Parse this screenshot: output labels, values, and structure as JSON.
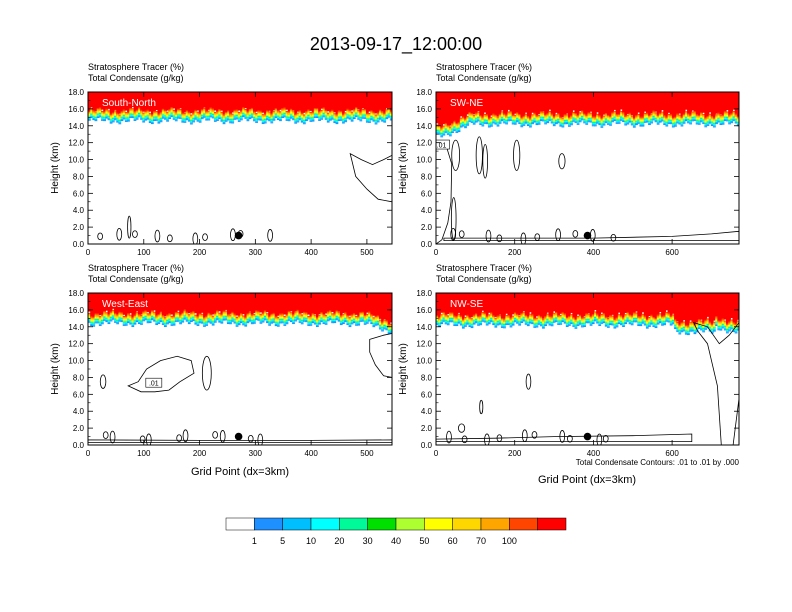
{
  "figure": {
    "title": "2013-09-17_12:00:00",
    "footnote": "Total Condensate Contours: .01 to .01 by .000",
    "xlabel": "Grid Point (dx=3km)",
    "ylabel": "Height (km)",
    "subtitle_line1": "Stratosphere Tracer   (%)",
    "subtitle_line2": "Total Condensate   (g/kg)"
  },
  "colorbar": {
    "colors": [
      "#ffffff",
      "#1e90ff",
      "#00bfff",
      "#00ffff",
      "#00fa9a",
      "#00e000",
      "#adff2f",
      "#ffff00",
      "#ffd700",
      "#ffa500",
      "#ff4500",
      "#ff0000"
    ],
    "labels": [
      "1",
      "5",
      "10",
      "20",
      "30",
      "40",
      "50",
      "60",
      "70",
      "100"
    ]
  },
  "chart_data": [
    {
      "type": "heatmap",
      "label": "South-North",
      "subtitle": "Stratosphere Tracer (%) / Total Condensate (g/kg)",
      "xlim": [
        0,
        545
      ],
      "ylim": [
        0,
        18
      ],
      "xticks": [
        "0",
        "100",
        "200",
        "300",
        "400",
        "500"
      ],
      "yticks": [
        "0.0",
        "2.0",
        "4.0",
        "6.0",
        "8.0",
        "10.0",
        "12.0",
        "14.0",
        "16.0",
        "18.0"
      ],
      "marker_x": 270,
      "tropopause_km": 15.2,
      "contour_label": ""
    },
    {
      "type": "heatmap",
      "label": "SW-NE",
      "subtitle": "Stratosphere Tracer (%) / Total Condensate (g/kg)",
      "xlim": [
        0,
        770
      ],
      "ylim": [
        0,
        18
      ],
      "xticks": [
        "0",
        "200",
        "400",
        "600"
      ],
      "yticks": [
        "0.0",
        "2.0",
        "4.0",
        "6.0",
        "8.0",
        "10.0",
        "12.0",
        "14.0",
        "16.0",
        "18.0"
      ],
      "marker_x": 385,
      "tropopause_km": 14.8,
      "contour_label": ".01"
    },
    {
      "type": "heatmap",
      "label": "West-East",
      "subtitle": "Stratosphere Tracer (%) / Total Condensate (g/kg)",
      "xlim": [
        0,
        545
      ],
      "ylim": [
        0,
        18
      ],
      "xticks": [
        "0",
        "100",
        "200",
        "300",
        "400",
        "500"
      ],
      "yticks": [
        "0.0",
        "2.0",
        "4.0",
        "6.0",
        "8.0",
        "10.0",
        "12.0",
        "14.0",
        "16.0",
        "18.0"
      ],
      "marker_x": 270,
      "tropopause_km": 15.0,
      "contour_label": ".01"
    },
    {
      "type": "heatmap",
      "label": "NW-SE",
      "subtitle": "Stratosphere Tracer (%) / Total Condensate (g/kg)",
      "xlim": [
        0,
        770
      ],
      "ylim": [
        0,
        18
      ],
      "xticks": [
        "0",
        "200",
        "400",
        "600"
      ],
      "yticks": [
        "0.0",
        "2.0",
        "4.0",
        "6.0",
        "8.0",
        "10.0",
        "12.0",
        "14.0",
        "16.0",
        "18.0"
      ],
      "marker_x": 385,
      "tropopause_km": 14.8,
      "contour_label": ""
    }
  ]
}
